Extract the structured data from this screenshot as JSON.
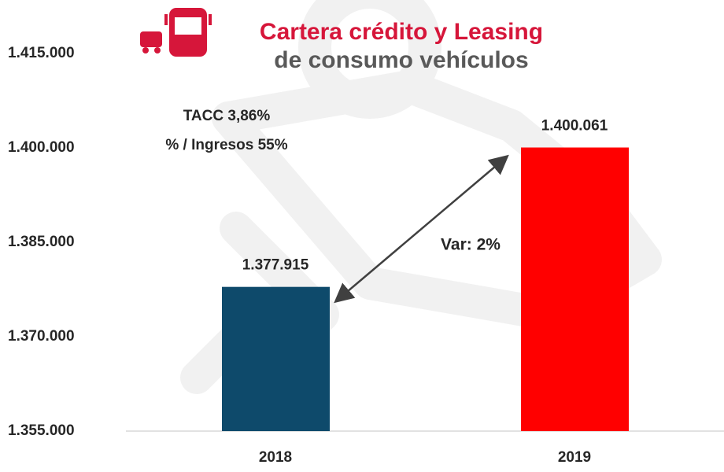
{
  "chart_data": {
    "type": "bar",
    "title": "Cartera crédito y Leasing",
    "subtitle": "de consumo vehículos",
    "annotations": [
      "TACC 3,86%",
      "% / Ingresos 55%",
      "Var: 2%"
    ],
    "categories": [
      "2018",
      "2019"
    ],
    "values": [
      1377915,
      1400061
    ],
    "value_labels": [
      "1.377.915",
      "1.400.061"
    ],
    "colors": [
      "#0e4a6b",
      "#ff0000"
    ],
    "ylim": [
      1355000,
      1415000
    ],
    "yticks": [
      {
        "value": 1355000,
        "label": "1.355.000"
      },
      {
        "value": 1370000,
        "label": "1.370.000"
      },
      {
        "value": 1385000,
        "label": "1.385.000"
      },
      {
        "value": 1400000,
        "label": "1.400.000"
      },
      {
        "value": 1415000,
        "label": "1.415.000"
      }
    ],
    "grid": false
  }
}
